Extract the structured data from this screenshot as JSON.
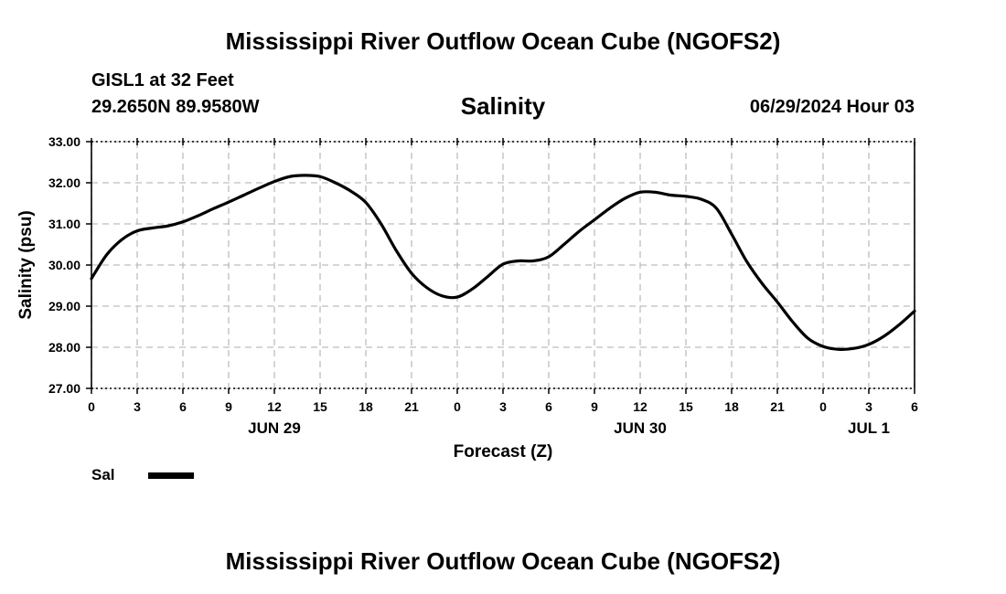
{
  "header": {
    "title": "Mississippi River Outflow Ocean Cube (NGOFS2)",
    "station": "GISL1 at 32 Feet",
    "coords": "29.2650N  89.9580W",
    "chart_title": "Salinity",
    "datetime": "06/29/2024 Hour 03"
  },
  "footer": {
    "title": "Mississippi River Outflow Ocean Cube (NGOFS2)"
  },
  "legend": {
    "series_label": "Sal",
    "swatch_color": "#000000"
  },
  "chart_data": {
    "type": "line",
    "title": "Salinity",
    "xlabel": "Forecast (Z)",
    "ylabel": "Salinity (psu)",
    "xlim": [
      0,
      54
    ],
    "ylim": [
      27.0,
      33.0
    ],
    "yticks": [
      27.0,
      28.0,
      29.0,
      30.0,
      31.0,
      32.0,
      33.0
    ],
    "ytick_labels": [
      "27.00",
      "28.00",
      "29.00",
      "30.00",
      "31.00",
      "32.00",
      "33.00"
    ],
    "xticks": [
      0,
      3,
      6,
      9,
      12,
      15,
      18,
      21,
      24,
      27,
      30,
      33,
      36,
      39,
      42,
      45,
      48,
      51,
      54
    ],
    "xtick_labels": [
      "0",
      "3",
      "6",
      "9",
      "12",
      "15",
      "18",
      "21",
      "0",
      "3",
      "6",
      "9",
      "12",
      "15",
      "18",
      "21",
      "0",
      "3",
      "6"
    ],
    "day_labels": [
      {
        "label": "JUN 29",
        "at": 12
      },
      {
        "label": "JUN 30",
        "at": 36
      },
      {
        "label": "JUL 1",
        "at": 51
      }
    ],
    "grid": true,
    "legend_position": "bottom-left",
    "series": [
      {
        "name": "Sal",
        "color": "#000000",
        "x": [
          0,
          1,
          2,
          3,
          4,
          5,
          6,
          7,
          8,
          9,
          10,
          11,
          12,
          13,
          14,
          15,
          16,
          17,
          18,
          19,
          20,
          21,
          22,
          23,
          24,
          25,
          26,
          27,
          28,
          29,
          30,
          31,
          32,
          33,
          34,
          35,
          36,
          37,
          38,
          39,
          40,
          41,
          42,
          43,
          44,
          45,
          46,
          47,
          48,
          49,
          50,
          51,
          52,
          53,
          54
        ],
        "y": [
          29.67,
          30.25,
          30.62,
          30.83,
          30.9,
          30.95,
          31.05,
          31.2,
          31.37,
          31.53,
          31.7,
          31.87,
          32.03,
          32.15,
          32.18,
          32.15,
          32.0,
          31.8,
          31.52,
          31.0,
          30.35,
          29.8,
          29.45,
          29.25,
          29.22,
          29.42,
          29.72,
          30.02,
          30.1,
          30.1,
          30.2,
          30.5,
          30.82,
          31.1,
          31.38,
          31.62,
          31.77,
          31.77,
          31.7,
          31.67,
          31.6,
          31.38,
          30.75,
          30.08,
          29.55,
          29.1,
          28.62,
          28.22,
          28.02,
          27.95,
          27.97,
          28.07,
          28.27,
          28.55,
          28.88
        ]
      }
    ]
  }
}
